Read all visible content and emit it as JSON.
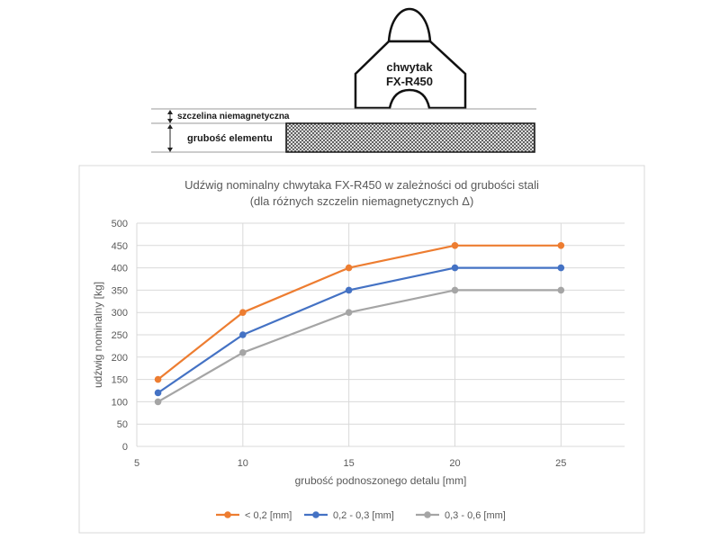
{
  "diagram": {
    "gripper_name_line1": "chwytak",
    "gripper_name_line2": "FX-R450",
    "gap_label": "szczelina niemagnetyczna",
    "thickness_label": "grubość elementu"
  },
  "colors": {
    "orange": "#ED7D31",
    "blue": "#4472C4",
    "gray": "#A5A5A5"
  },
  "chart_data": {
    "type": "line",
    "title": "Udźwig nominalny chwytaka FX-R450 w zależności od grubości stali",
    "subtitle": "(dla różnych szczelin niemagnetycznych Δ)",
    "xlabel": "grubość podnoszonego detalu [mm]",
    "ylabel": "udźwig nominalny [kg]",
    "xlim": [
      5,
      28
    ],
    "ylim": [
      0,
      500
    ],
    "xticks": [
      5,
      10,
      15,
      20,
      25
    ],
    "yticks": [
      0,
      50,
      100,
      150,
      200,
      250,
      300,
      350,
      400,
      450,
      500
    ],
    "grid": true,
    "legend_position": "bottom",
    "x": [
      6,
      10,
      15,
      20,
      25
    ],
    "series": [
      {
        "name": "< 0,2 [mm]",
        "color": "#ED7D31",
        "values": [
          150,
          300,
          400,
          450,
          450
        ]
      },
      {
        "name": "0,2 - 0,3 [mm]",
        "color": "#4472C4",
        "values": [
          120,
          250,
          350,
          400,
          400
        ]
      },
      {
        "name": "0,3 - 0,6 [mm]",
        "color": "#A5A5A5",
        "values": [
          100,
          210,
          300,
          350,
          350
        ]
      }
    ]
  }
}
